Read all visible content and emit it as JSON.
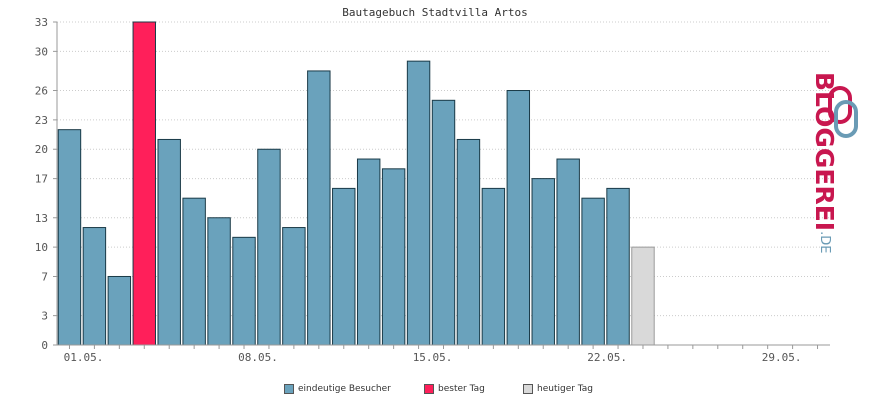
{
  "chart_data": {
    "type": "bar",
    "title": "Bautagebuch Stadtvilla Artos",
    "y_ticks": [
      0,
      3,
      7,
      10,
      13,
      17,
      20,
      23,
      26,
      30,
      33
    ],
    "ylim": [
      0,
      33
    ],
    "x_tick_labels": [
      "01.05.",
      "08.05.",
      "15.05.",
      "22.05.",
      "29.05."
    ],
    "x_tick_days": [
      1,
      8,
      15,
      22,
      29
    ],
    "days_in_range": 31,
    "grid": true,
    "legend_position": "bottom",
    "series": [
      {
        "name": "eindeutige Besucher",
        "color": "#6aa2bc",
        "x": [
          1,
          2,
          3,
          5,
          6,
          7,
          8,
          9,
          10,
          11,
          12,
          13,
          14,
          15,
          16,
          17,
          18,
          19,
          20,
          21,
          22,
          23
        ],
        "values": [
          22,
          12,
          7,
          21,
          15,
          13,
          11,
          20,
          12,
          28,
          16,
          19,
          18,
          29,
          25,
          21,
          16,
          26,
          17,
          19,
          15,
          16
        ]
      },
      {
        "name": "bester Tag",
        "color": "#ff1f5a",
        "x": [
          4
        ],
        "values": [
          33
        ]
      },
      {
        "name": "heutiger Tag",
        "color": "#d9d9d9",
        "x": [
          24
        ],
        "values": [
          10
        ]
      }
    ]
  },
  "logo": {
    "word": "BLOGGEREI",
    "domain": ".DE",
    "colors": {
      "primary": "#c8174f",
      "secondary": "#6a9bb5"
    }
  }
}
